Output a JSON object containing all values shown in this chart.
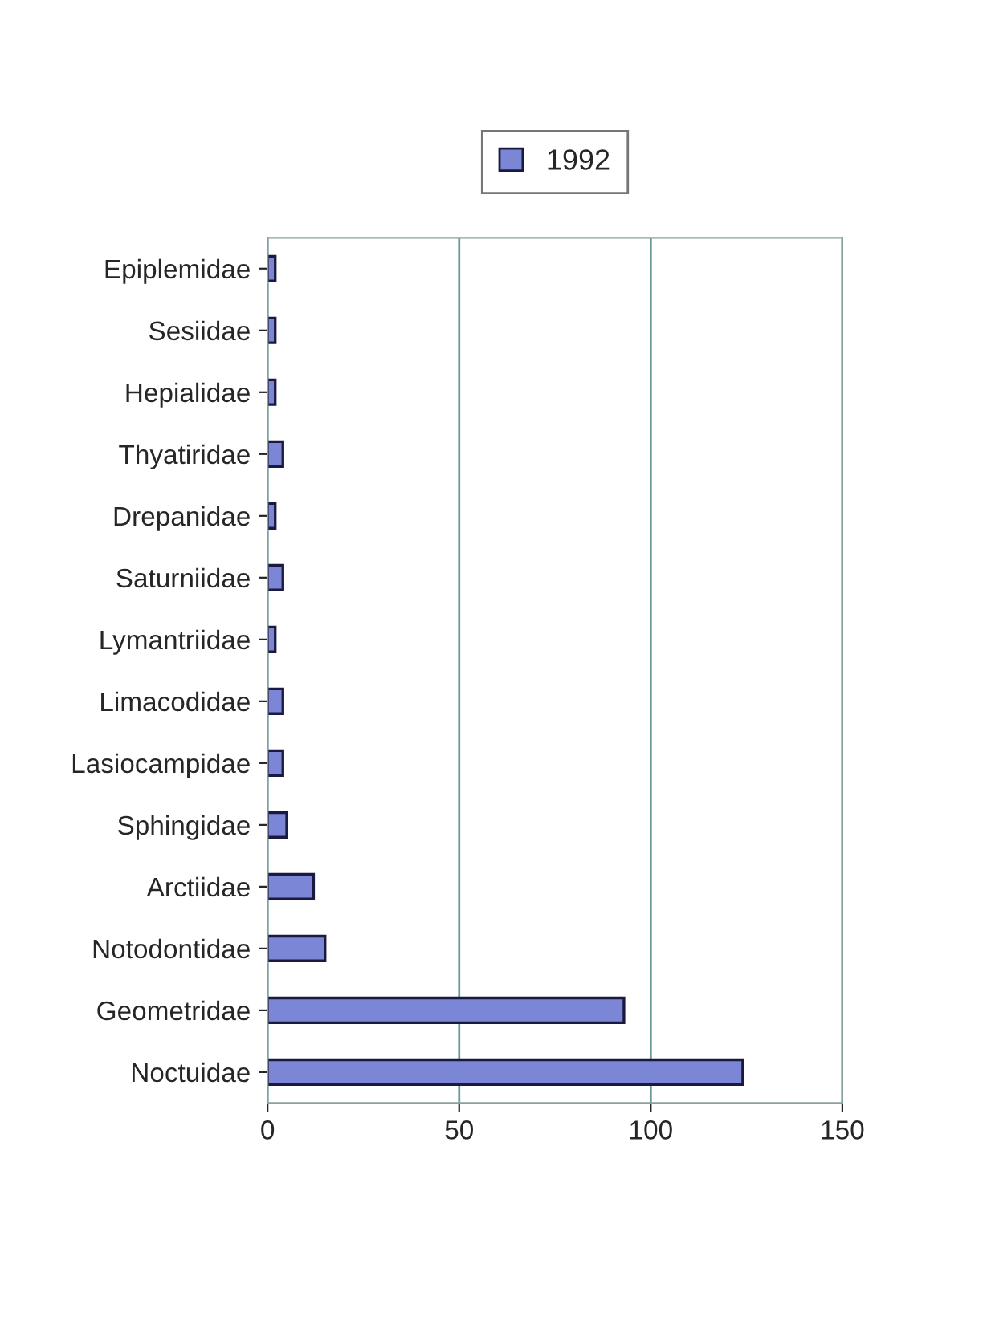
{
  "chart_data": {
    "type": "bar",
    "orientation": "horizontal",
    "categories": [
      "Epiplemidae",
      "Sesiidae",
      "Hepialidae",
      "Thyatiridae",
      "Drepanidae",
      "Saturniidae",
      "Lymantriidae",
      "Limacodidae",
      "Lasiocampidae",
      "Sphingidae",
      "Arctiidae",
      "Notodontidae",
      "Geometridae",
      "Noctuidae"
    ],
    "series": [
      {
        "name": "1992",
        "color": "#7b86d6",
        "values": [
          2,
          2,
          2,
          4,
          2,
          4,
          2,
          4,
          4,
          5,
          12,
          15,
          93,
          124
        ]
      }
    ],
    "xlim": [
      0,
      150
    ],
    "xticks": [
      0,
      50,
      100,
      150
    ],
    "grid": "x",
    "legend": "top"
  }
}
